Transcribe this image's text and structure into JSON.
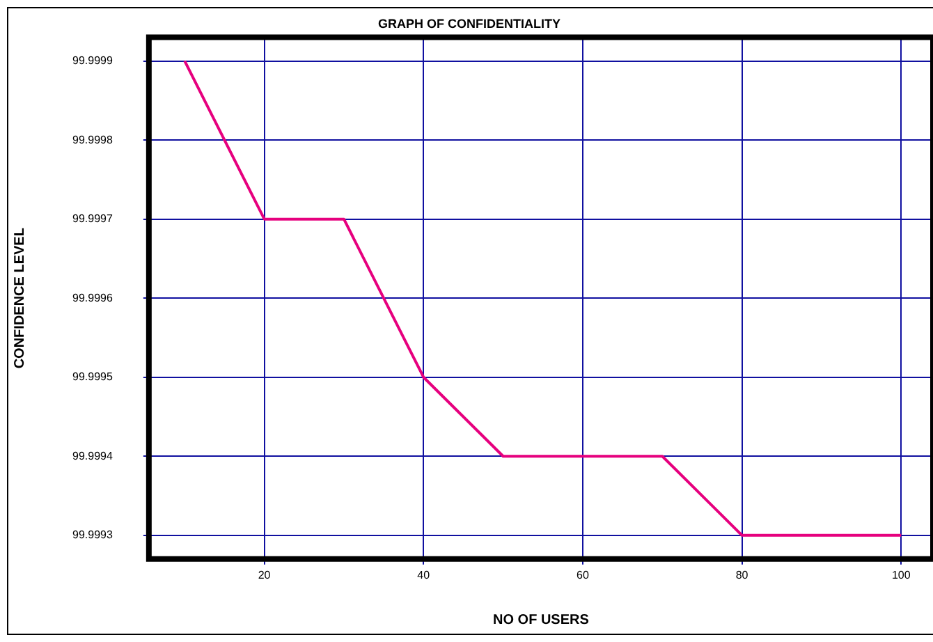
{
  "chart_data": {
    "type": "line",
    "title": "GRAPH OF CONFIDENTIALITY",
    "xlabel": "NO OF USERS",
    "ylabel": "CONFIDENCE LEVEL",
    "x": [
      10,
      20,
      30,
      40,
      50,
      60,
      70,
      80,
      90,
      100
    ],
    "series": [
      {
        "color": "#e6007e",
        "values": [
          99.9999,
          99.9997,
          99.9997,
          99.9995,
          99.9994,
          99.9994,
          99.9994,
          99.9993,
          99.9993,
          99.9993
        ]
      }
    ],
    "xlim": [
      5.5,
      104
    ],
    "xticks": [
      20,
      40,
      60,
      80,
      100
    ],
    "ylim": [
      99.99927,
      99.99993
    ],
    "yticks": [
      99.9993,
      99.9994,
      99.9995,
      99.9996,
      99.9997,
      99.9998,
      99.9999
    ],
    "grid": true,
    "legend": false,
    "marker": "none",
    "line_style": "solid"
  }
}
